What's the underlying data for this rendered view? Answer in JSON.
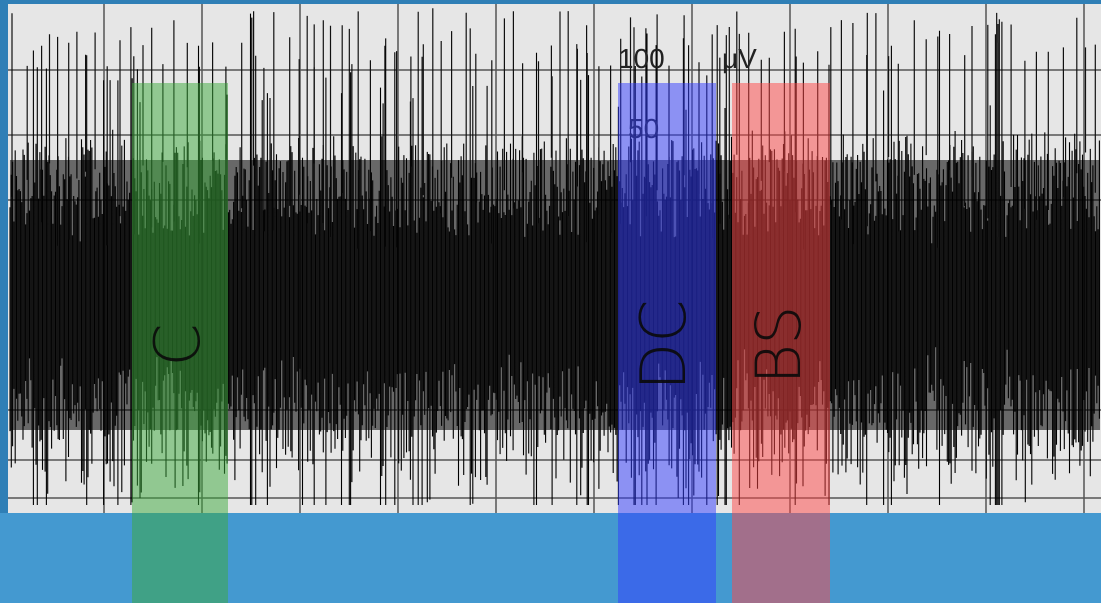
{
  "scale": {
    "value_label": "100",
    "unit": "μV",
    "minor_label": "50"
  },
  "overlays": [
    {
      "label": "C"
    },
    {
      "label": "DC"
    },
    {
      "label": "BS"
    }
  ]
}
